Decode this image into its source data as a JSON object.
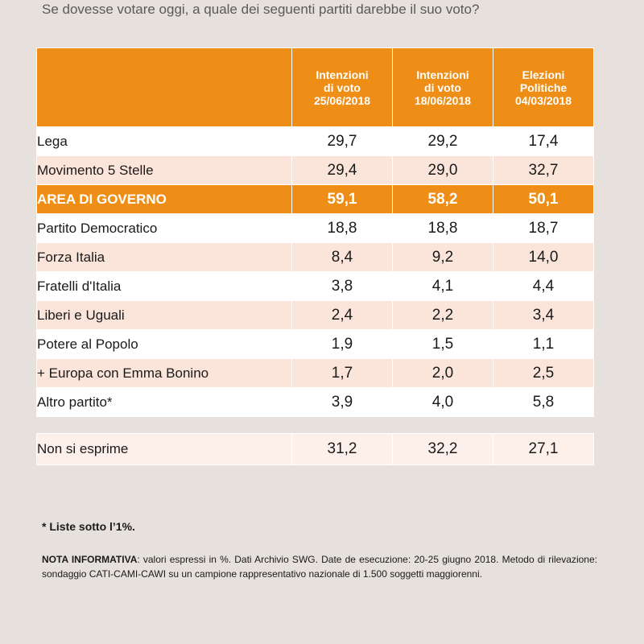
{
  "question": "Se dovesse votare oggi, a quale dei seguenti partiti darebbe il suo voto?",
  "chart_data": {
    "type": "table",
    "columns": [
      [
        "Intenzioni",
        "di voto",
        "25/06/2018"
      ],
      [
        "Intenzioni",
        "di voto",
        "18/06/2018"
      ],
      [
        "Elezioni",
        "Politiche",
        "04/03/2018"
      ]
    ],
    "rows": [
      {
        "label": "Lega",
        "values": [
          "29,7",
          "29,2",
          "17,4"
        ],
        "style": "odd"
      },
      {
        "label": "Movimento 5 Stelle",
        "values": [
          "29,4",
          "29,0",
          "32,7"
        ],
        "style": "even"
      },
      {
        "label": "AREA DI GOVERNO",
        "values": [
          "59,1",
          "58,2",
          "50,1"
        ],
        "style": "highlight"
      },
      {
        "label": "Partito Democratico",
        "values": [
          "18,8",
          "18,8",
          "18,7"
        ],
        "style": "odd"
      },
      {
        "label": "Forza Italia",
        "values": [
          "8,4",
          "9,2",
          "14,0"
        ],
        "style": "even"
      },
      {
        "label": "Fratelli d'Italia",
        "values": [
          "3,8",
          "4,1",
          "4,4"
        ],
        "style": "odd"
      },
      {
        "label": "Liberi e Uguali",
        "values": [
          "2,4",
          "2,2",
          "3,4"
        ],
        "style": "even"
      },
      {
        "label": "Potere al Popolo",
        "values": [
          "1,9",
          "1,5",
          "1,1"
        ],
        "style": "odd"
      },
      {
        "label": "+ Europa con Emma Bonino",
        "values": [
          "1,7",
          "2,0",
          "2,5"
        ],
        "style": "even"
      },
      {
        "label": "Altro partito*",
        "values": [
          "3,9",
          "4,0",
          "5,8"
        ],
        "style": "odd"
      }
    ],
    "summary_row": {
      "label": "Non si esprime",
      "values": [
        "31,2",
        "32,2",
        "27,1"
      ]
    }
  },
  "colors": {
    "header": "#ef8e16",
    "row_alt": "#fbe4d9",
    "row": "#ffffff"
  },
  "footnote": "* Liste sotto l’1%.",
  "note": {
    "title": "NOTA INFORMATIVA",
    "text": ": valori espressi in %. Dati Archivio SWG. Date de esecuzione: 20-25 giugno 2018. Metodo di rilevazione: sondaggio CATI-CAMI-CAWI su un campione rappresentativo nazionale di 1.500 soggetti maggiorenni."
  }
}
